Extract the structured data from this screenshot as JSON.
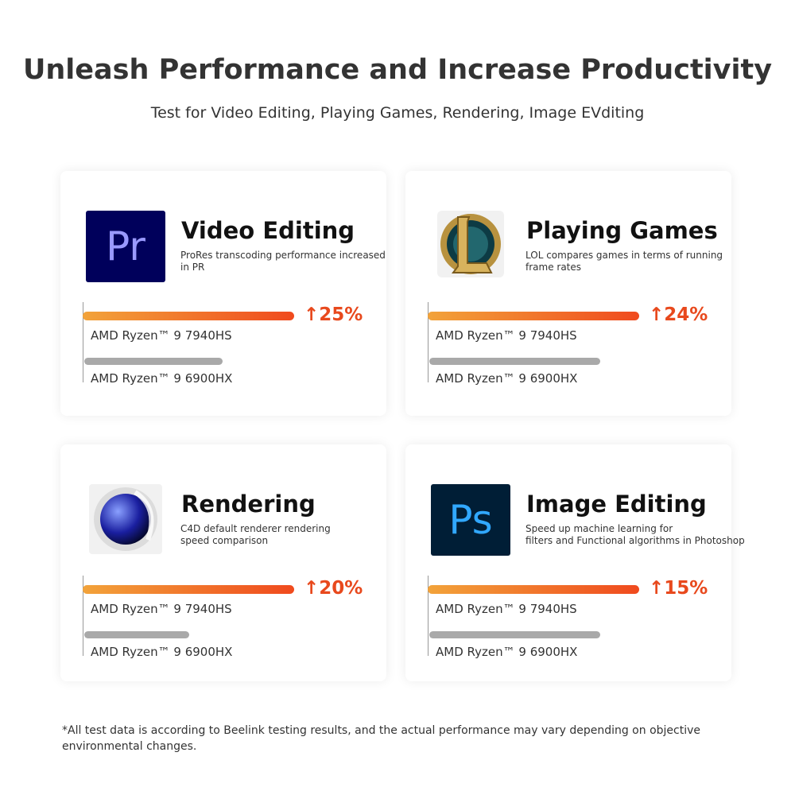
{
  "header": {
    "title": "Unleash Performance and Increase Productivity",
    "subtitle": "Test for Video Editing, Playing Games, Rendering, Image EVditing"
  },
  "cards": [
    {
      "title": "Video Editing",
      "icon_text": "Pr",
      "description": [
        "ProRes transcoding performance increased",
        "in PR"
      ],
      "improvement": "↑25%",
      "cpu_new": "AMD Ryzen™ 9 7940HS",
      "cpu_old": "AMD Ryzen™ 9 6900HX"
    },
    {
      "title": "Playing Games",
      "description": [
        "LOL compares games in terms of running",
        "frame rates"
      ],
      "improvement": "↑24%",
      "cpu_new": "AMD Ryzen™ 9 7940HS",
      "cpu_old": "AMD Ryzen™ 9 6900HX"
    },
    {
      "title": "Rendering",
      "description": [
        "C4D default renderer rendering",
        "speed comparison"
      ],
      "improvement": "↑20%",
      "cpu_new": "AMD Ryzen™ 9 7940HS",
      "cpu_old": "AMD Ryzen™ 9 6900HX"
    },
    {
      "title": "Image Editing",
      "icon_text": "Ps",
      "description": [
        "Speed up machine learning for",
        "filters and Functional algorithms in Photoshop"
      ],
      "improvement": "↑15%",
      "cpu_new": "AMD Ryzen™ 9 7940HS",
      "cpu_old": "AMD Ryzen™ 9 6900HX"
    }
  ],
  "footnote": [
    "*All test data is according to Beelink testing results, and the actual performance may vary depending on objective",
    "environmental changes."
  ]
}
